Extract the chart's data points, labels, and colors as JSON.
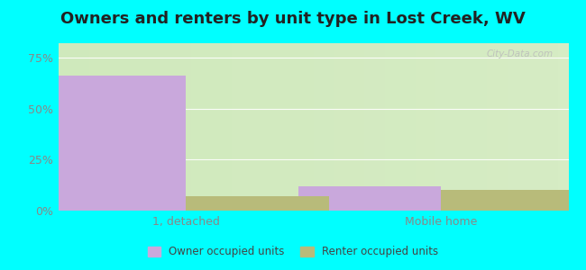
{
  "title": "Owners and renters by unit type in Lost Creek, WV",
  "categories": [
    "1, detached",
    "Mobile home"
  ],
  "owner_values": [
    66,
    12
  ],
  "renter_values": [
    7,
    10
  ],
  "owner_color": "#c9a8dc",
  "renter_color": "#b8bb7a",
  "yticks": [
    0,
    25,
    50,
    75
  ],
  "ytick_labels": [
    "0%",
    "25%",
    "50%",
    "75%"
  ],
  "ylim": [
    0,
    82
  ],
  "bar_width": 0.28,
  "plot_bg_left": "#d6ecc4",
  "plot_bg_right": "#e8f5e0",
  "outer_background": "#00ffff",
  "legend_owner": "Owner occupied units",
  "legend_renter": "Renter occupied units",
  "watermark": "City-Data.com",
  "title_fontsize": 13,
  "tick_fontsize": 9,
  "cat_fontsize": 9,
  "group_positions": [
    0.25,
    0.75
  ],
  "xlim": [
    0,
    1
  ]
}
